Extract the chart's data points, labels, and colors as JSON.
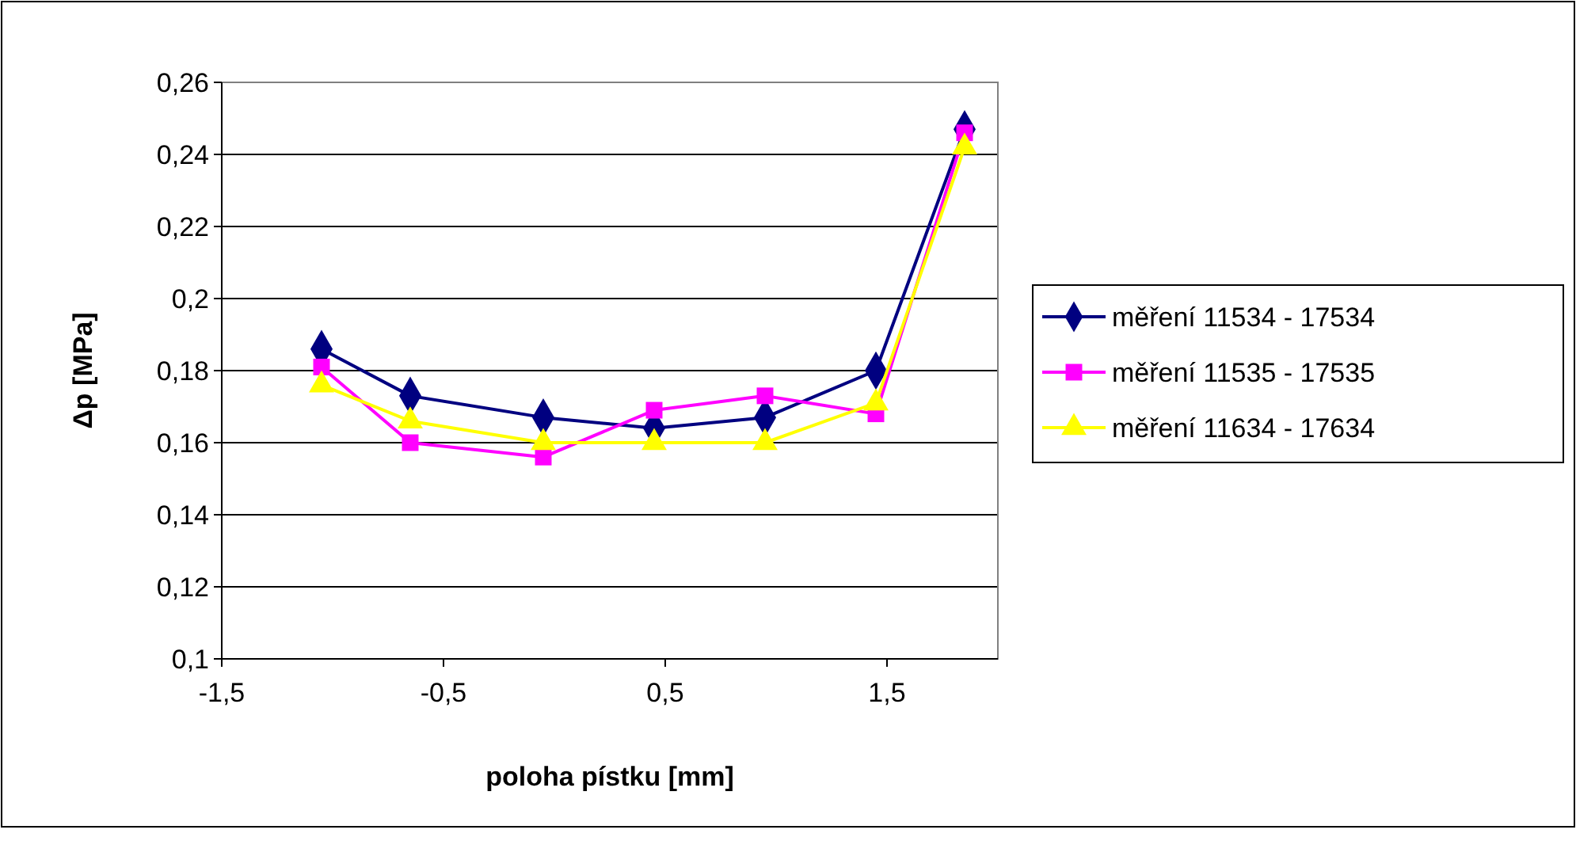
{
  "chart_data": {
    "type": "line",
    "xlabel": "poloha pístku [mm]",
    "ylabel": "Δp [MPa]",
    "x": [
      -1.05,
      -0.65,
      -0.05,
      0.45,
      0.95,
      1.45,
      1.85
    ],
    "series": [
      {
        "name": "měření 11534 - 17534",
        "color": "#000080",
        "marker": "diamond",
        "values": [
          0.186,
          0.173,
          0.167,
          0.164,
          0.167,
          0.18,
          0.247
        ]
      },
      {
        "name": "měření 11535 - 17535",
        "color": "#ff00ff",
        "marker": "square",
        "values": [
          0.181,
          0.16,
          0.156,
          0.169,
          0.173,
          0.168,
          0.246
        ]
      },
      {
        "name": "měření 11634 - 17634",
        "color": "#ffff00",
        "marker": "triangle",
        "values": [
          0.176,
          0.166,
          0.16,
          0.16,
          0.16,
          0.171,
          0.242
        ]
      }
    ],
    "xlim": [
      -1.5,
      2.0
    ],
    "xticks": [
      {
        "value": -1.5,
        "label": "-1,5"
      },
      {
        "value": -0.5,
        "label": "-0,5"
      },
      {
        "value": 0.5,
        "label": "0,5"
      },
      {
        "value": 1.5,
        "label": "1,5"
      }
    ],
    "ylim": [
      0.1,
      0.26
    ],
    "yticks": [
      {
        "value": 0.1,
        "label": "0,1"
      },
      {
        "value": 0.12,
        "label": "0,12"
      },
      {
        "value": 0.14,
        "label": "0,14"
      },
      {
        "value": 0.16,
        "label": "0,16"
      },
      {
        "value": 0.18,
        "label": "0,18"
      },
      {
        "value": 0.2,
        "label": "0,2"
      },
      {
        "value": 0.22,
        "label": "0,22"
      },
      {
        "value": 0.24,
        "label": "0,24"
      },
      {
        "value": 0.26,
        "label": "0,26"
      }
    ],
    "grid": "y",
    "legend": "right"
  }
}
